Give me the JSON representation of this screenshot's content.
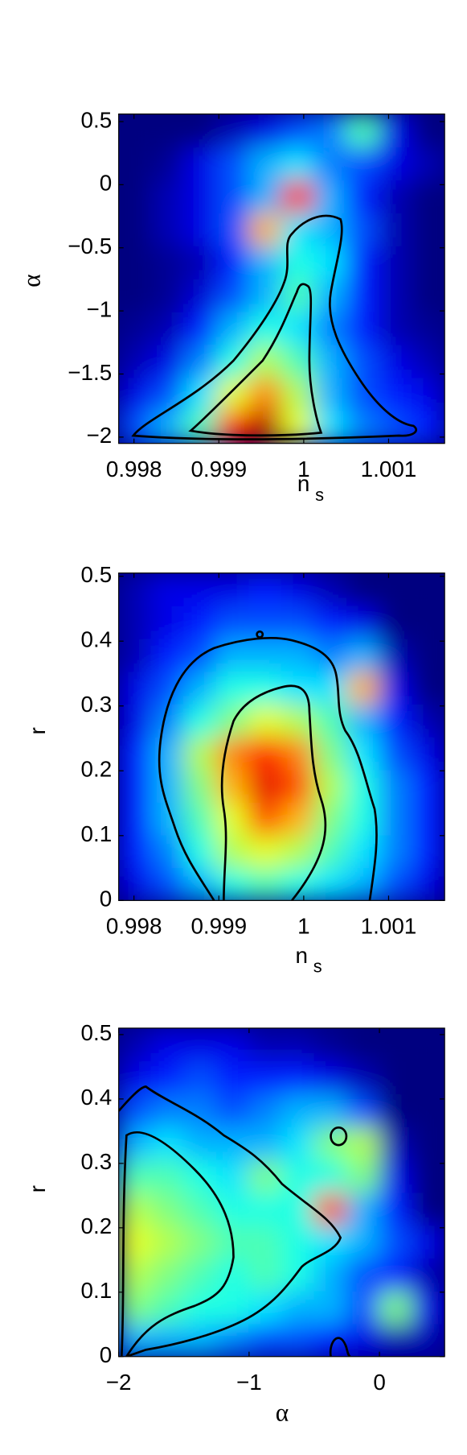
{
  "chart_data": [
    {
      "type": "heatmap",
      "colormap": "jet",
      "zlim": [
        0,
        1
      ],
      "xlabel": "n",
      "xlabel_subscript": "s",
      "ylabel": "α",
      "xlim": [
        0.99782,
        1.00166
      ],
      "ylim": [
        -2.05,
        0.56
      ],
      "xticks": [
        0.998,
        0.999,
        1,
        1.001
      ],
      "yticks": [
        0.5,
        0,
        {
          "value": -0.5,
          "label": "−0.5"
        },
        {
          "value": -1,
          "label": "−1"
        },
        {
          "value": -1.5,
          "label": "−1.5"
        },
        {
          "value": -2,
          "label": "−2"
        }
      ],
      "z": [
        [
          0.2,
          0.3,
          0.45,
          0.85,
          0.95,
          0.6,
          0.35,
          0.25,
          0.2,
          0.15
        ],
        [
          0.1,
          0.2,
          0.35,
          0.6,
          0.75,
          0.55,
          0.3,
          0.2,
          0.15,
          0.1
        ],
        [
          0.05,
          0.1,
          0.25,
          0.4,
          0.55,
          0.45,
          0.3,
          0.2,
          0.1,
          0.05
        ],
        [
          0.02,
          0.05,
          0.15,
          0.3,
          0.4,
          0.35,
          0.25,
          0.15,
          0.05,
          0.02
        ],
        [
          0,
          0.02,
          0.08,
          0.2,
          0.3,
          0.45,
          0.3,
          0.15,
          0.05,
          0
        ],
        [
          0,
          0.02,
          0.05,
          0.15,
          0.3,
          0.4,
          0.35,
          0.15,
          0.05,
          0
        ],
        [
          0,
          0.05,
          0.1,
          0.2,
          0.7,
          0.35,
          0.3,
          0.2,
          0.05,
          0
        ],
        [
          0,
          0.05,
          0.1,
          0.2,
          0.3,
          0.85,
          0.3,
          0.15,
          0.05,
          0
        ],
        [
          0,
          0.02,
          0.1,
          0.2,
          0.3,
          0.35,
          0.25,
          0.2,
          0.1,
          0.05
        ],
        [
          0,
          0,
          0,
          0.05,
          0.1,
          0.2,
          0.25,
          0.45,
          0.1,
          0
        ]
      ]
    },
    {
      "type": "heatmap",
      "colormap": "jet",
      "zlim": [
        0,
        1
      ],
      "xlabel": "n",
      "xlabel_subscript": "s",
      "ylabel": "r",
      "xlim": [
        0.99782,
        1.00166
      ],
      "ylim": [
        0,
        0.505
      ],
      "xticks": [
        0.998,
        0.999,
        1,
        1.001
      ],
      "yticks": [
        0.5,
        0.4,
        0.3,
        0.2,
        0.1,
        0
      ],
      "z": [
        [
          0.1,
          0.2,
          0.3,
          0.4,
          0.45,
          0.4,
          0.35,
          0.3,
          0.2,
          0.1
        ],
        [
          0.15,
          0.25,
          0.4,
          0.55,
          0.6,
          0.55,
          0.45,
          0.35,
          0.25,
          0.15
        ],
        [
          0.15,
          0.3,
          0.45,
          0.6,
          0.8,
          0.7,
          0.5,
          0.4,
          0.25,
          0.15
        ],
        [
          0.15,
          0.3,
          0.5,
          0.7,
          0.9,
          0.8,
          0.55,
          0.4,
          0.25,
          0.15
        ],
        [
          0.15,
          0.3,
          0.55,
          0.75,
          0.85,
          0.75,
          0.5,
          0.35,
          0.2,
          0.1
        ],
        [
          0.1,
          0.25,
          0.4,
          0.5,
          0.6,
          0.55,
          0.45,
          0.3,
          0.15,
          0.05
        ],
        [
          0.1,
          0.2,
          0.3,
          0.4,
          0.4,
          0.35,
          0.35,
          0.7,
          0.1,
          0
        ],
        [
          0.05,
          0.15,
          0.2,
          0.3,
          0.3,
          0.3,
          0.25,
          0.3,
          0.05,
          0
        ],
        [
          0.05,
          0.1,
          0.15,
          0.2,
          0.2,
          0.2,
          0.15,
          0.1,
          0,
          0
        ],
        [
          0.05,
          0.1,
          0.1,
          0.1,
          0.15,
          0.1,
          0.05,
          0,
          0,
          0
        ]
      ]
    },
    {
      "type": "heatmap",
      "colormap": "jet",
      "zlim": [
        0,
        1
      ],
      "xlabel": "α",
      "ylabel": "r",
      "xlim": [
        -2,
        0.5
      ],
      "ylim": [
        0,
        0.51
      ],
      "xticks": [
        {
          "value": -2,
          "label": "−2"
        },
        {
          "value": -1,
          "label": "−1"
        },
        0
      ],
      "yticks": [
        0.5,
        0.4,
        0.3,
        0.2,
        0.1,
        0
      ],
      "z": [
        [
          0.3,
          0.3,
          0.3,
          0.25,
          0.2,
          0.2,
          0.15,
          0.1,
          0.05,
          0.05
        ],
        [
          0.5,
          0.45,
          0.4,
          0.4,
          0.35,
          0.3,
          0.3,
          0.2,
          0.5,
          0.1
        ],
        [
          0.55,
          0.5,
          0.45,
          0.4,
          0.45,
          0.4,
          0.3,
          0.2,
          0.15,
          0.05
        ],
        [
          0.6,
          0.55,
          0.5,
          0.45,
          0.45,
          0.4,
          0.35,
          0.3,
          0.2,
          0.1
        ],
        [
          0.55,
          0.5,
          0.45,
          0.4,
          0.4,
          0.4,
          0.8,
          0.3,
          0.15,
          0
        ],
        [
          0.45,
          0.45,
          0.4,
          0.35,
          0.5,
          0.4,
          0.4,
          0.5,
          0.1,
          0
        ],
        [
          0.3,
          0.35,
          0.3,
          0.3,
          0.3,
          0.35,
          0.5,
          0.55,
          0.05,
          0
        ],
        [
          0.2,
          0.25,
          0.25,
          0.2,
          0.25,
          0.3,
          0.3,
          0.2,
          0,
          0
        ],
        [
          0.1,
          0.15,
          0.2,
          0.15,
          0.15,
          0.15,
          0.1,
          0.05,
          0,
          0
        ],
        [
          0.05,
          0.1,
          0.1,
          0.1,
          0.05,
          0.05,
          0.02,
          0,
          0,
          0
        ]
      ]
    }
  ]
}
